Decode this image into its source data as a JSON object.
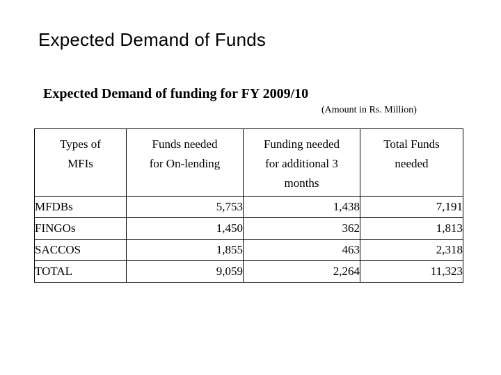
{
  "slide": {
    "title": "Expected Demand of Funds"
  },
  "table": {
    "title": "Expected Demand of funding for FY 2009/10",
    "unit_note": "(Amount in Rs. Million)",
    "headers": [
      [
        "Types of",
        "MFIs"
      ],
      [
        "Funds needed",
        "for On-lending"
      ],
      [
        "Funding needed",
        "for additional 3",
        "months"
      ],
      [
        "Total Funds",
        "needed"
      ]
    ],
    "rows": [
      {
        "type": "MFDBs",
        "on_lending": "5,753",
        "additional": "1,438",
        "total": "7,191"
      },
      {
        "type": "FINGOs",
        "on_lending": "1,450",
        "additional": "362",
        "total": "1,813"
      },
      {
        "type": "SACCOS",
        "on_lending": "1,855",
        "additional": "463",
        "total": "2,318"
      },
      {
        "type": "TOTAL",
        "on_lending": "9,059",
        "additional": "2,264",
        "total": "11,323"
      }
    ]
  }
}
